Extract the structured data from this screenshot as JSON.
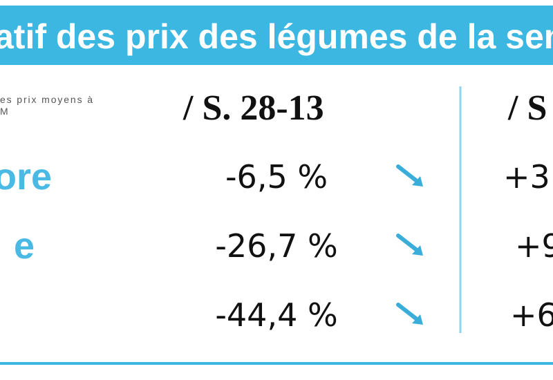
{
  "header": {
    "title": "atif des prix des légumes de la sem"
  },
  "table": {
    "note": [
      "es prix moyens à",
      "M"
    ],
    "columns": [
      "/ S. 28-13",
      "/ S"
    ],
    "rows": [
      {
        "label": "ore",
        "values": [
          "-6,5 %",
          "+3"
        ]
      },
      {
        "label": "e",
        "values": [
          "-26,7 %",
          "+9"
        ]
      },
      {
        "values": [
          "-44,4 %",
          "+6"
        ]
      }
    ]
  }
}
